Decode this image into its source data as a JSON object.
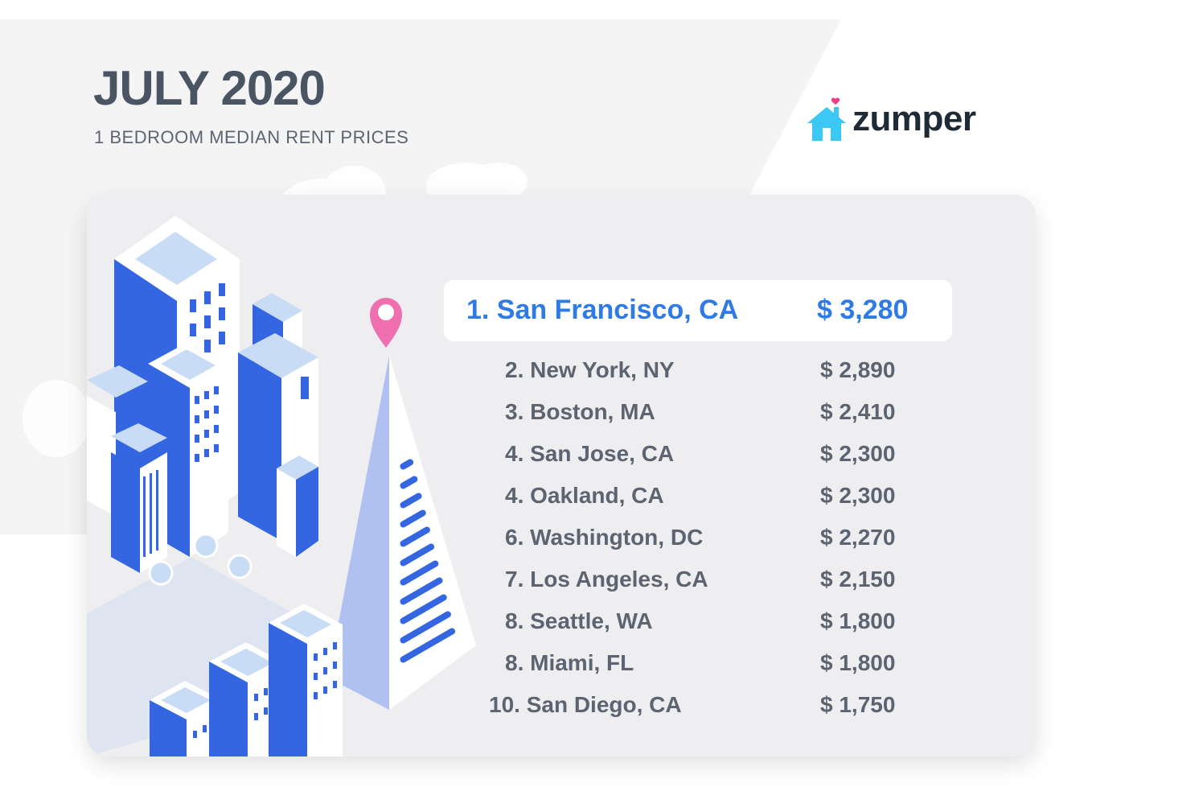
{
  "header": {
    "title": "JULY 2020",
    "subtitle": "1 BEDROOM MEDIAN RENT PRICES"
  },
  "logo": {
    "text": "zumper",
    "icon": "house-heart-icon"
  },
  "colors": {
    "accent_blue": "#2f7be5",
    "text_gray": "#5b6470",
    "building_blue": "#3366e0",
    "pin_pink": "#ef6fb0",
    "logo_house": "#3bc8f5"
  },
  "top_city": {
    "name": "1. San Francisco, CA",
    "price": "$ 3,280"
  },
  "cities": [
    {
      "name": "2. New York, NY",
      "price": "$ 2,890"
    },
    {
      "name": "3. Boston, MA",
      "price": "$ 2,410"
    },
    {
      "name": "4. San Jose, CA",
      "price": "$ 2,300"
    },
    {
      "name": "4. Oakland, CA",
      "price": "$ 2,300"
    },
    {
      "name": "6. Washington, DC",
      "price": "$ 2,270"
    },
    {
      "name": "7. Los Angeles, CA",
      "price": "$ 2,150"
    },
    {
      "name": "8. Seattle, WA",
      "price": "$ 1,800"
    },
    {
      "name": "8. Miami, FL",
      "price": "$ 1,800"
    },
    {
      "name": "10. San Diego, CA",
      "price": "$ 1,750"
    }
  ]
}
